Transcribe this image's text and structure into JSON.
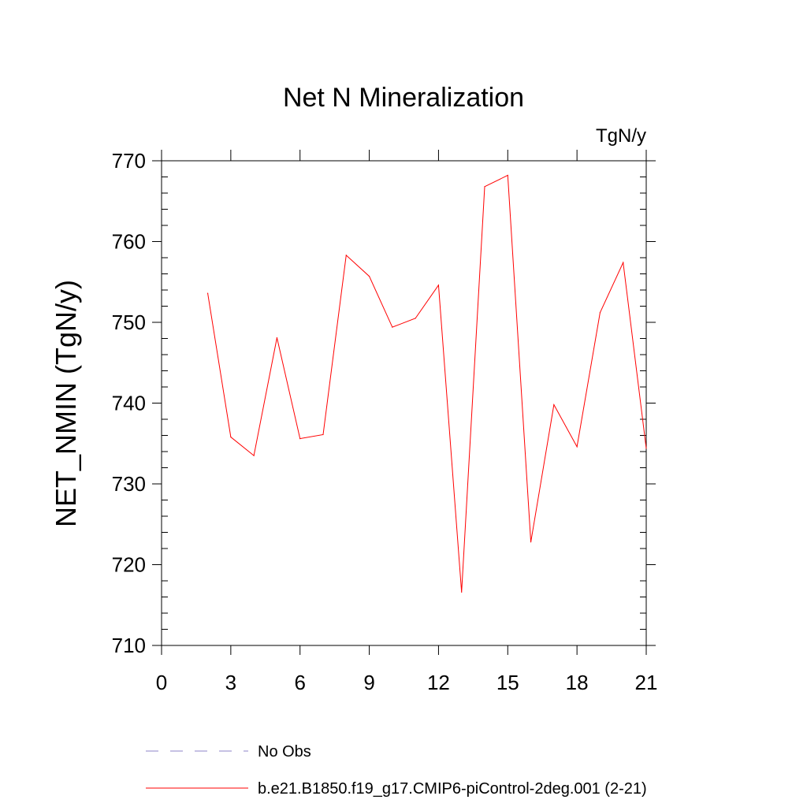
{
  "chart_data": {
    "type": "line",
    "title": "Net N Mineralization",
    "units_label": "TgN/y",
    "ylabel": "NET_NMIN  (TgN/y)",
    "xlabel": "",
    "xlim": [
      0,
      21
    ],
    "ylim": [
      710,
      770
    ],
    "x_ticks": [
      0,
      3,
      6,
      9,
      12,
      15,
      18,
      21
    ],
    "y_ticks": [
      710,
      720,
      730,
      740,
      750,
      760,
      770
    ],
    "grid": false,
    "legend_position": "bottom-left",
    "series": [
      {
        "name": "No Obs",
        "style": "dashed",
        "color": "#8c86c8",
        "x": [],
        "values": []
      },
      {
        "name": "b.e21.B1850.f19_g17.CMIP6-piControl-2deg.001 (2-21)",
        "style": "solid",
        "color": "#ff0000",
        "x": [
          2,
          3,
          4,
          5,
          6,
          7,
          8,
          9,
          10,
          11,
          12,
          13,
          14,
          15,
          16,
          17,
          18,
          19,
          20,
          21
        ],
        "values": [
          753.6,
          735.8,
          733.5,
          748.1,
          735.6,
          736.1,
          758.3,
          755.7,
          749.4,
          750.5,
          754.6,
          716.6,
          766.8,
          768.2,
          722.8,
          739.8,
          734.6,
          751.2,
          757.4,
          734.4
        ]
      }
    ]
  }
}
